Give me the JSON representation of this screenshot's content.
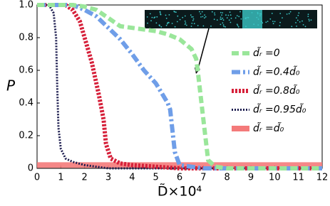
{
  "chart_data": {
    "type": "line",
    "xlabel": "D̃×10⁴",
    "ylabel": "P",
    "xlim": [
      0,
      12
    ],
    "xticks": [
      0,
      1,
      2,
      3,
      4,
      5,
      6,
      7,
      8,
      9,
      10,
      11,
      12
    ],
    "ylim": [
      0,
      1
    ],
    "yticks": [
      0,
      {
        "value": 0.2,
        "label": "0.2"
      },
      {
        "value": 0.4,
        "label": "0.4"
      },
      {
        "value": 0.6,
        "label": "0.6"
      },
      {
        "value": 0.8,
        "label": "0.8"
      },
      {
        "value": 1,
        "label": "1.0"
      }
    ],
    "grid": false,
    "legend": "right",
    "series": [
      {
        "name": "d̃ᵣ =0",
        "color": "#9ae69a",
        "style": "dashed",
        "x": [
          0,
          1,
          1.5,
          2,
          2.5,
          3,
          3.5,
          4,
          4.5,
          5,
          5.5,
          6,
          6.5,
          6.7,
          6.8,
          7,
          7.2,
          7.5,
          8,
          9,
          10,
          11,
          12
        ],
        "values": [
          1,
          1,
          1,
          0.99,
          0.97,
          0.92,
          0.87,
          0.86,
          0.85,
          0.84,
          0.82,
          0.79,
          0.73,
          0.67,
          0.55,
          0.3,
          0.05,
          0.01,
          0,
          0,
          0,
          0,
          0
        ]
      },
      {
        "name": "d̃ᵣ =0.4d̃₀",
        "color": "#6f9ee8",
        "style": "dashdot",
        "x": [
          0,
          1,
          1.5,
          2,
          2.5,
          3,
          3.5,
          4,
          4.5,
          5,
          5.5,
          5.6,
          5.8,
          6,
          6.5,
          7,
          8,
          9,
          10,
          11,
          12
        ],
        "values": [
          1,
          1,
          1,
          0.97,
          0.93,
          0.86,
          0.79,
          0.7,
          0.6,
          0.52,
          0.4,
          0.36,
          0.1,
          0.02,
          0.01,
          0,
          0,
          0,
          0,
          0,
          0
        ]
      },
      {
        "name": "d̃ᵣ =0.8d̃₀",
        "color": "#d6203a",
        "style": "dotted",
        "x": [
          0,
          1,
          1.2,
          1.5,
          1.8,
          2,
          2.3,
          2.6,
          2.8,
          2.9,
          3.1,
          3.5,
          4,
          5,
          6,
          7,
          8,
          9,
          10,
          11,
          12
        ],
        "values": [
          1,
          1,
          1,
          0.97,
          0.9,
          0.8,
          0.65,
          0.45,
          0.3,
          0.15,
          0.06,
          0.03,
          0.02,
          0.01,
          0,
          0,
          0,
          0,
          0,
          0,
          0
        ]
      },
      {
        "name": "d̃ᵣ =0.95d̃₀",
        "color": "#1a1a4d",
        "style": "finedot",
        "x": [
          0,
          0.5,
          0.7,
          0.8,
          0.85,
          0.9,
          1,
          1.2,
          1.5,
          2,
          2.5,
          3,
          4,
          5,
          6,
          7,
          8,
          9,
          10,
          11,
          12
        ],
        "values": [
          1,
          1,
          0.95,
          0.8,
          0.5,
          0.25,
          0.12,
          0.06,
          0.04,
          0.02,
          0.01,
          0,
          0,
          0,
          0,
          0,
          0,
          0,
          0,
          0,
          0
        ]
      },
      {
        "name": "d̃ᵣ =d̃₀",
        "color": "#f47a7a",
        "style": "solid",
        "x": [
          0,
          1,
          2,
          3,
          4,
          5,
          6,
          7,
          8,
          9,
          10,
          11,
          12
        ],
        "values": [
          0.02,
          0.02,
          0.02,
          0.02,
          0.02,
          0.02,
          0.02,
          0.02,
          0.02,
          0.02,
          0.02,
          0.02,
          0.02
        ]
      }
    ]
  }
}
